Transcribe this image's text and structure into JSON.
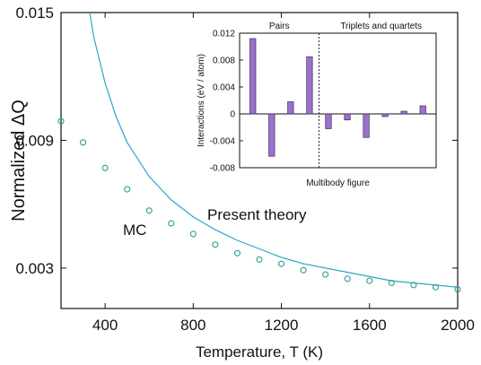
{
  "chart_data": [
    {
      "type": "line",
      "xlabel": "Temperature, T (K)",
      "ylabel": "Normalized ΔQ",
      "xlim": [
        200,
        2000
      ],
      "ylim": [
        0.0011,
        0.015
      ],
      "x_ticks": [
        "400",
        "800",
        "1200",
        "1600",
        "2000"
      ],
      "x_tick_values": [
        400,
        800,
        1200,
        1600,
        2000
      ],
      "y_ticks": [
        "0.003",
        "0.009",
        "0.015"
      ],
      "y_tick_values": [
        0.003,
        0.009,
        0.015
      ],
      "series": [
        {
          "name": "Present theory",
          "style": "line",
          "color": "#2ba6c8",
          "x": [
            300,
            350,
            400,
            450,
            500,
            600,
            700,
            800,
            900,
            1000,
            1100,
            1200,
            1300,
            1400,
            1500,
            1600,
            1700,
            1800,
            1900,
            2000
          ],
          "y": [
            0.0168,
            0.0138,
            0.0117,
            0.0101,
            0.0089,
            0.0073,
            0.0062,
            0.0054,
            0.0048,
            0.0043,
            0.0039,
            0.0035,
            0.0032,
            0.003,
            0.0028,
            0.0026,
            0.0024,
            0.0023,
            0.0022,
            0.0021
          ]
        },
        {
          "name": "MC",
          "style": "markers",
          "color": "#2a9d8f",
          "x": [
            200,
            300,
            400,
            500,
            600,
            700,
            800,
            900,
            1000,
            1100,
            1200,
            1300,
            1400,
            1500,
            1600,
            1700,
            1800,
            1900,
            2000
          ],
          "y": [
            0.0099,
            0.0089,
            0.0077,
            0.0067,
            0.0057,
            0.0051,
            0.0046,
            0.0041,
            0.0037,
            0.0034,
            0.0032,
            0.0029,
            0.0027,
            0.0025,
            0.0024,
            0.0023,
            0.0022,
            0.0021,
            0.002
          ]
        }
      ],
      "annotations": [
        "MC",
        "Present theory"
      ],
      "grid": false
    },
    {
      "type": "bar",
      "title_left": "Pairs",
      "title_right": "Triplets and quartets",
      "xlabel": "Multibody figure",
      "ylabel": "Interactions (eV / atom)",
      "ylim": [
        -0.008,
        0.012
      ],
      "y_ticks": [
        "0.012",
        "0.008",
        "0.004",
        "0",
        "-0.004",
        "-0.008"
      ],
      "y_tick_values": [
        0.012,
        0.008,
        0.004,
        0,
        -0.004,
        -0.008
      ],
      "color": "#9b72c9",
      "values": [
        0.0112,
        -0.0063,
        0.0018,
        0.0085,
        -0.0022,
        -0.0009,
        -0.0035,
        -0.0004,
        0.0004,
        0.0012
      ],
      "divider_after_index": 3,
      "grid": false
    }
  ]
}
